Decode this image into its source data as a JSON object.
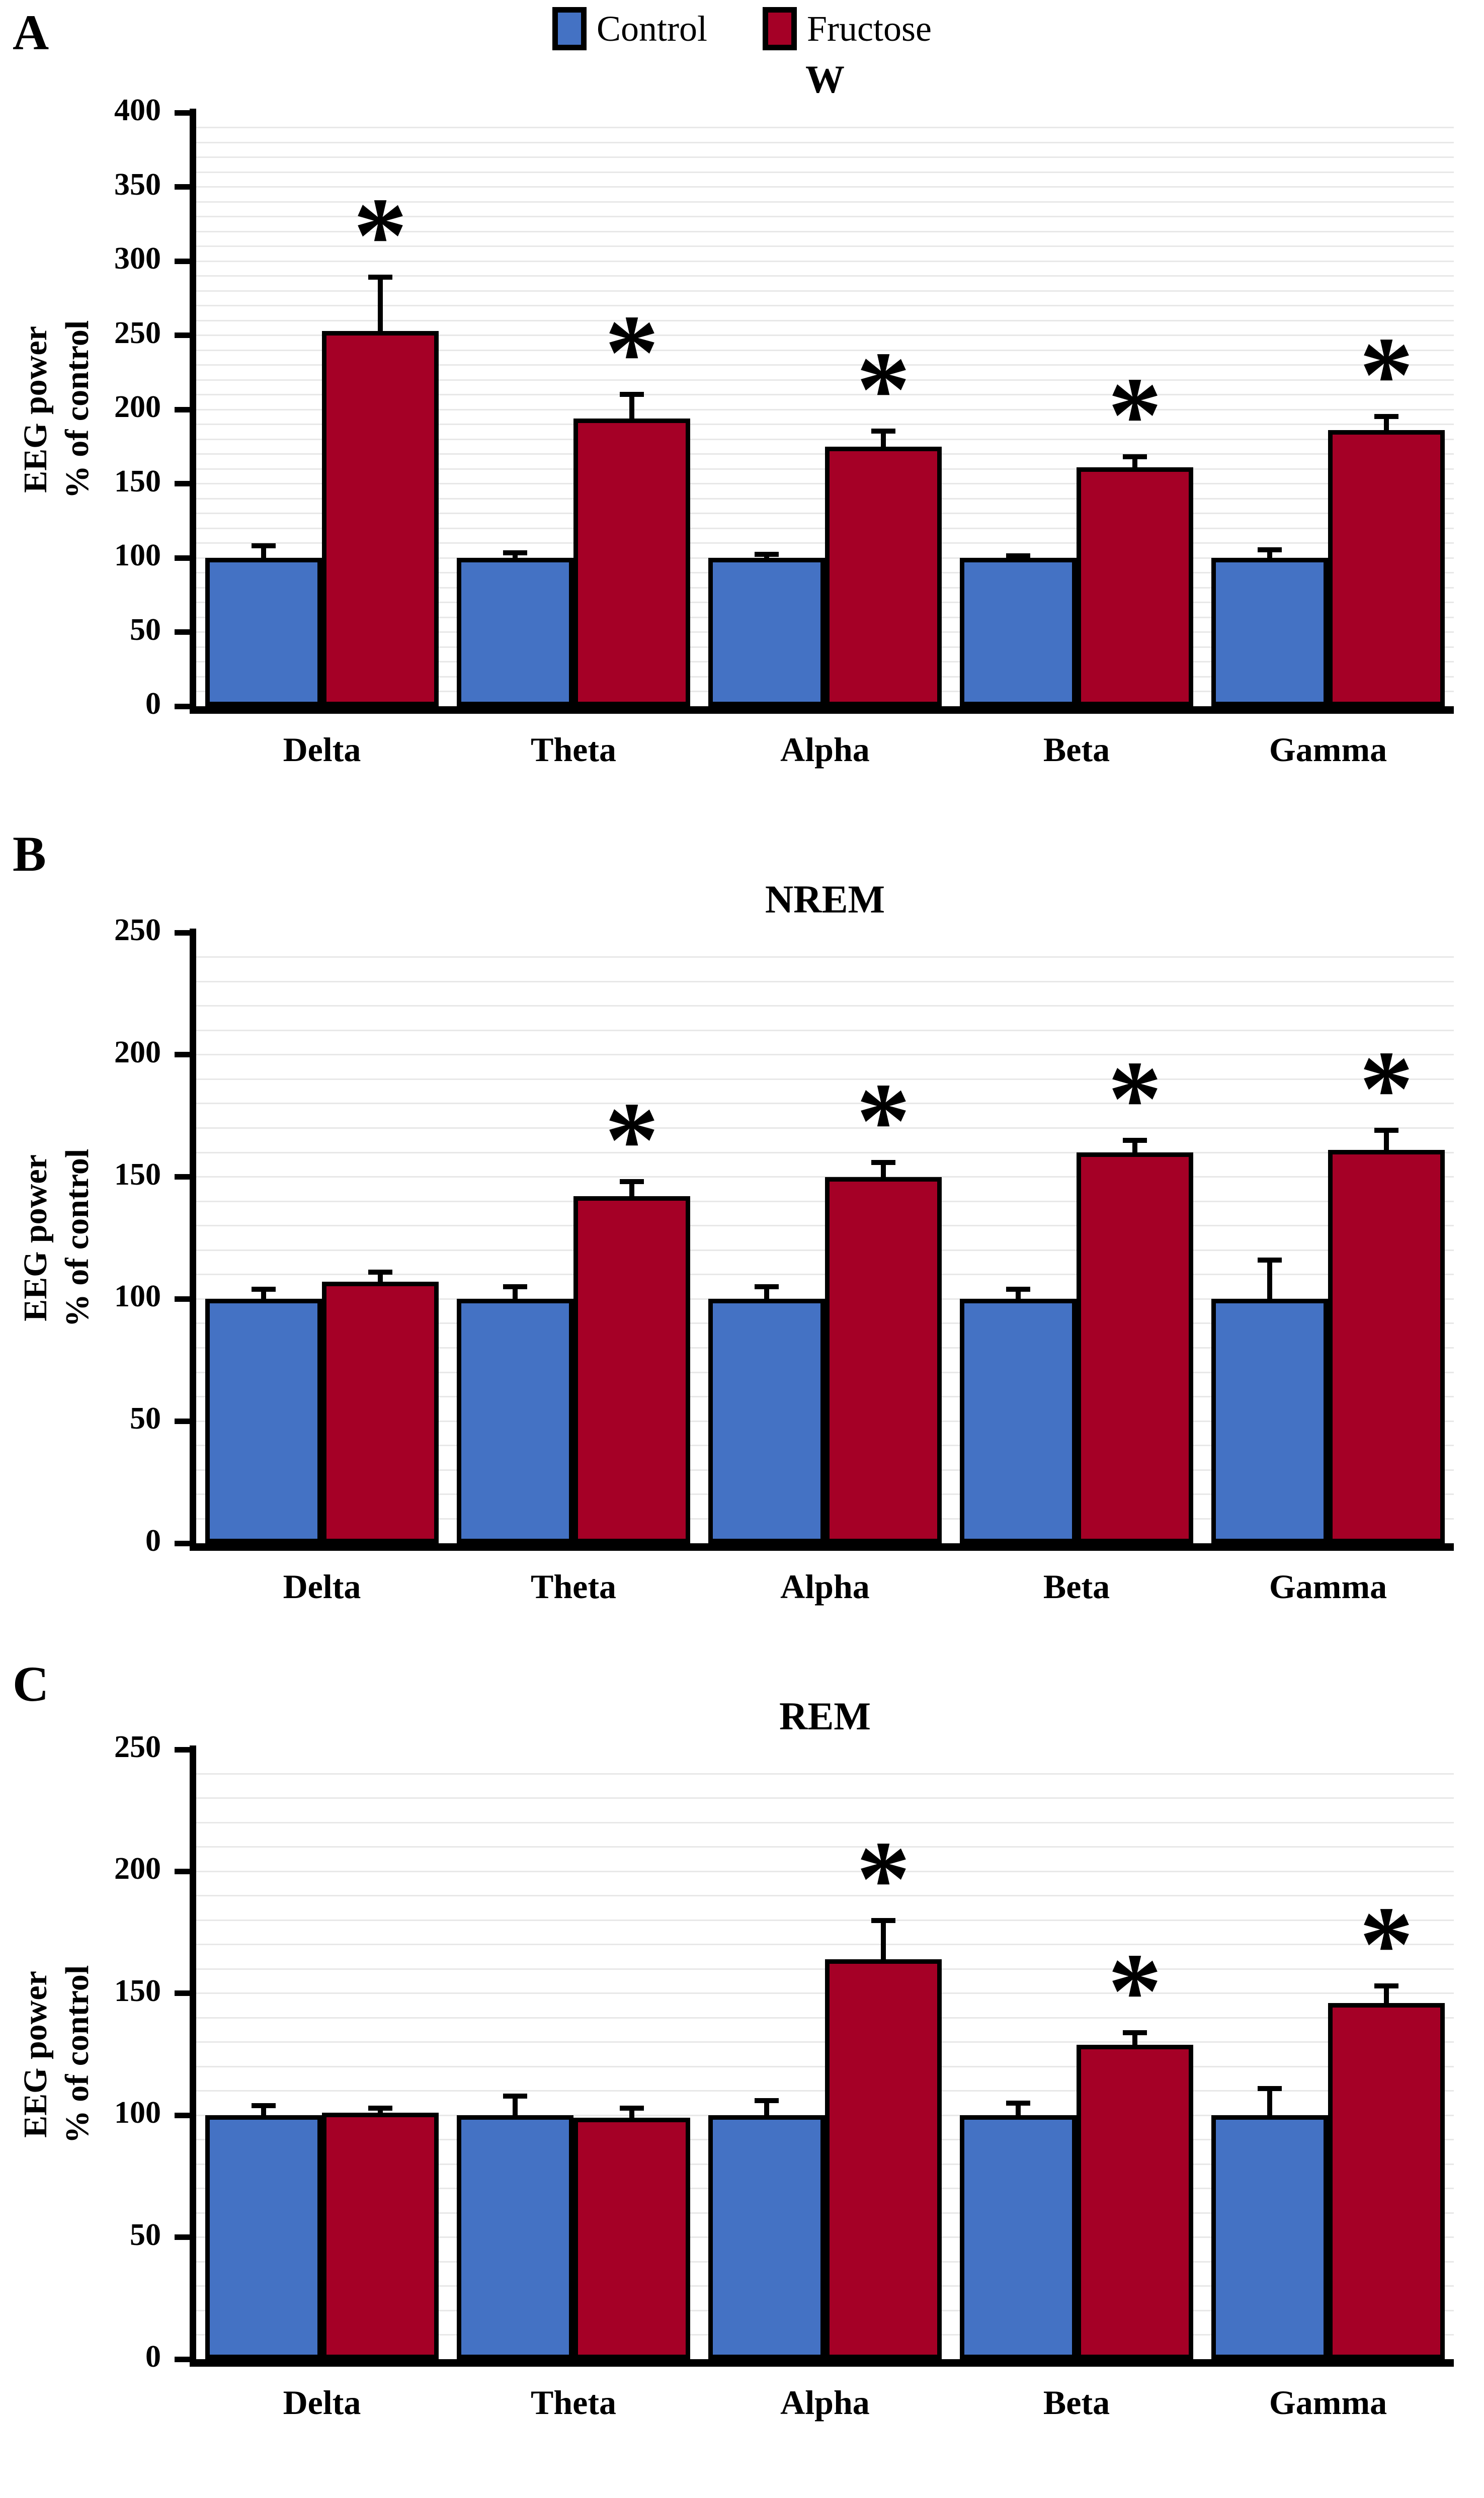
{
  "figure": {
    "significance_marker": "*"
  },
  "legend": {
    "items": [
      {
        "label": "Control",
        "color": "#4472C4"
      },
      {
        "label": "Fructose",
        "color": "#A50026"
      }
    ]
  },
  "chart_data": [
    {
      "type": "bar",
      "panel_label": "A",
      "title": "W",
      "ylabel_line1": "EEG power",
      "ylabel_line2": "% of control",
      "ylim": [
        0,
        400
      ],
      "ytick_step": 50,
      "grid_step": 10,
      "grid": true,
      "legend_position": "top-center",
      "categories": [
        "Delta",
        "Theta",
        "Alpha",
        "Beta",
        "Gamma"
      ],
      "series": [
        {
          "name": "Control",
          "color": "#4472C4",
          "values": [
            100,
            100,
            100,
            100,
            100
          ],
          "errors": [
            10,
            5,
            4,
            3,
            7
          ]
        },
        {
          "name": "Fructose",
          "color": "#A50026",
          "values": [
            253,
            194,
            175,
            161,
            186
          ],
          "errors": [
            38,
            18,
            12,
            9,
            11
          ]
        }
      ],
      "significant_fructose": [
        true,
        true,
        true,
        true,
        true
      ]
    },
    {
      "type": "bar",
      "panel_label": "B",
      "title": "NREM",
      "ylabel_line1": "EEG power",
      "ylabel_line2": "% of control",
      "ylim": [
        0,
        250
      ],
      "ytick_step": 50,
      "grid_step": 10,
      "grid": true,
      "categories": [
        "Delta",
        "Theta",
        "Alpha",
        "Beta",
        "Gamma"
      ],
      "series": [
        {
          "name": "Control",
          "color": "#4472C4",
          "values": [
            100,
            100,
            100,
            100,
            100
          ],
          "errors": [
            5,
            6,
            6,
            5,
            17
          ]
        },
        {
          "name": "Fructose",
          "color": "#A50026",
          "values": [
            107,
            142,
            150,
            160,
            161
          ],
          "errors": [
            5,
            7,
            7,
            6,
            9
          ]
        }
      ],
      "significant_fructose": [
        false,
        true,
        true,
        true,
        true
      ]
    },
    {
      "type": "bar",
      "panel_label": "C",
      "title": "REM",
      "ylabel_line1": "EEG power",
      "ylabel_line2": "% of control",
      "ylim": [
        0,
        250
      ],
      "ytick_step": 50,
      "grid_step": 10,
      "grid": true,
      "categories": [
        "Delta",
        "Theta",
        "Alpha",
        "Beta",
        "Gamma"
      ],
      "series": [
        {
          "name": "Control",
          "color": "#4472C4",
          "values": [
            100,
            100,
            100,
            100,
            100
          ],
          "errors": [
            5,
            9,
            7,
            6,
            12
          ]
        },
        {
          "name": "Fructose",
          "color": "#A50026",
          "values": [
            101,
            99,
            164,
            129,
            146
          ],
          "errors": [
            3,
            5,
            17,
            6,
            8
          ]
        }
      ],
      "significant_fructose": [
        false,
        false,
        true,
        true,
        true
      ]
    }
  ]
}
